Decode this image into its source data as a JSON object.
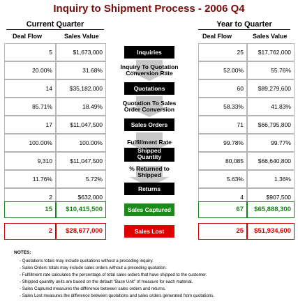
{
  "title": "Inquiry to Shipment Process - 2006 Q4",
  "current_quarter": {
    "heading": "Current Quarter",
    "col1": "Deal Flow",
    "col2": "Sales Value"
  },
  "year_to_quarter": {
    "heading": "Year to Quarter",
    "col1": "Deal Flow",
    "col2": "Sales Value"
  },
  "rows": [
    {
      "kind": "stage",
      "label": "Inquiries",
      "cq_flow": "5",
      "cq_value": "$1,673,000",
      "yq_flow": "25",
      "yq_value": "$17,762,000"
    },
    {
      "kind": "rate",
      "label_l1": "Inquiry To Quotation",
      "label_l2": "Conversion Rate",
      "cq_flow": "20.00%",
      "cq_value": "31.68%",
      "yq_flow": "52.00%",
      "yq_value": "55.76%"
    },
    {
      "kind": "stage",
      "label": "Quotations",
      "cq_flow": "14",
      "cq_value": "$35,182,000",
      "yq_flow": "60",
      "yq_value": "$89,279,600"
    },
    {
      "kind": "rate",
      "label_l1": "Quotation To Sales",
      "label_l2": "Order Conversion",
      "cq_flow": "85.71%",
      "cq_value": "18.49%",
      "yq_flow": "58.33%",
      "yq_value": "41.83%"
    },
    {
      "kind": "stage",
      "label": "Sales Orders",
      "cq_flow": "17",
      "cq_value": "$11,047,500",
      "yq_flow": "71",
      "yq_value": "$66,795,800"
    },
    {
      "kind": "rate1",
      "label": "Fulfillment Rate",
      "cq_flow": "100.00%",
      "cq_value": "100.00%",
      "yq_flow": "99.78%",
      "yq_value": "99.77%"
    },
    {
      "kind": "stage2",
      "label_l1": "Shipped",
      "label_l2": "Quantity",
      "cq_flow": "9,310",
      "cq_value": "$11,047,500",
      "yq_flow": "80,085",
      "yq_value": "$66,640,800"
    },
    {
      "kind": "rate",
      "label_l1": "% Returned to",
      "label_l2": "Shipped",
      "cq_flow": "11.76%",
      "cq_value": "5.72%",
      "yq_flow": "5.63%",
      "yq_value": "1.36%"
    },
    {
      "kind": "stage",
      "label": "Returns",
      "cq_flow": "2",
      "cq_value": "$632,000",
      "yq_flow": "4",
      "yq_value": "$907,500"
    }
  ],
  "sales_captured": {
    "label": "Sales Captured",
    "cq_flow": "15",
    "cq_value": "$10,415,500",
    "yq_flow": "67",
    "yq_value": "$65,888,300"
  },
  "sales_lost": {
    "label": "Sales Lost",
    "cq_flow": "2",
    "cq_value": "$28,677,000",
    "yq_flow": "25",
    "yq_value": "$51,934,600"
  },
  "notes": {
    "heading": "NOTES:",
    "items": [
      "- Quotations totals may include quotations without a preceding inquiry.",
      "- Sales Orders totals may include sales orders without a preceding quotation.",
      "- Fulfillment rate calculates the percentage of total sales orders that have shipped to the customer.",
      "- Shipped quantity units are based on the default \"Base Unit\" of measure for each material.",
      "- Sales Captured measures the difference between sales orders and returns.",
      "- Sales Lost measures the difference between quotations and sales orders generated from quotations."
    ]
  },
  "colors": {
    "title": "#7a0b0b",
    "captured": "#1b8a1b",
    "lost": "#e00000",
    "arrow": "#c8c8c8"
  }
}
